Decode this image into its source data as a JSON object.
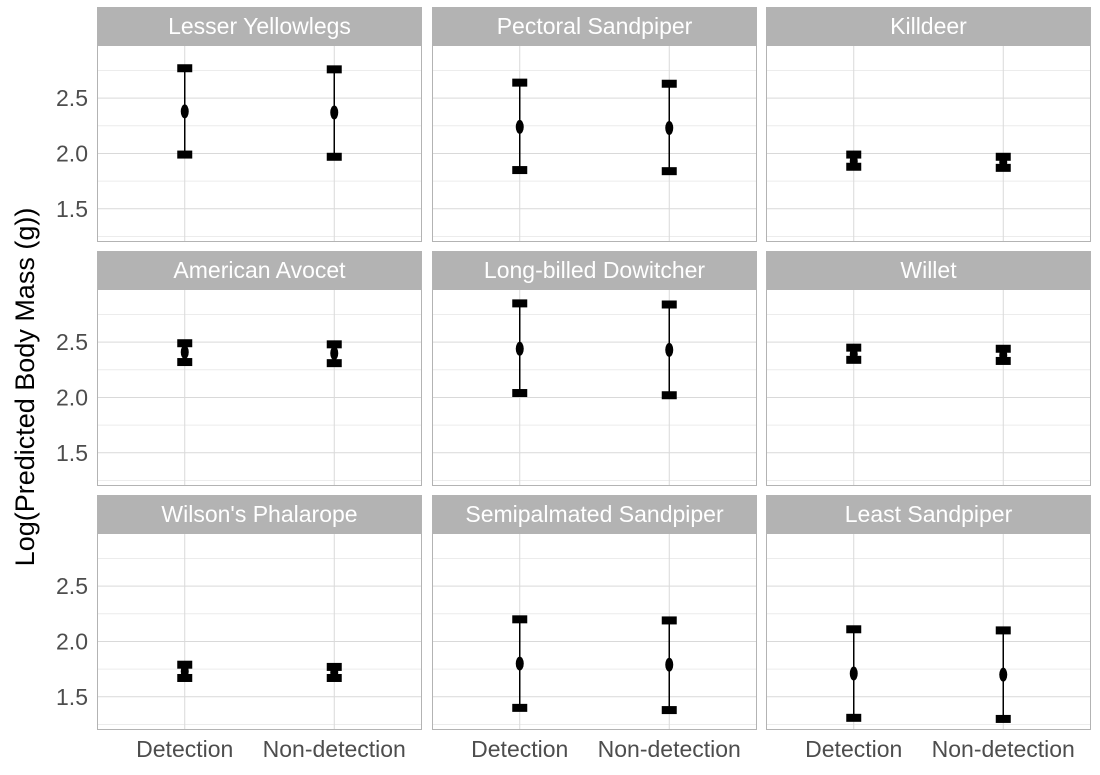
{
  "chart_data": {
    "type": "errorbar",
    "ylabel": "Log(Predicted Body Mass (g))",
    "xlabel": "",
    "categories": [
      "Detection",
      "Non-detection"
    ],
    "yticks": [
      1.5,
      2.0,
      2.5
    ],
    "ytick_labels": [
      "1.5",
      "2.0",
      "2.5"
    ],
    "ylim": [
      1.2,
      2.98
    ],
    "grid": true,
    "colors": {
      "strip_bg": "#b3b3b3",
      "strip_text": "#ffffff",
      "panel_border": "#b3b3b3",
      "grid_major": "#d9d9d9",
      "grid_minor": "#ececec",
      "mark": "#000000",
      "axis_text": "#4d4d4d"
    },
    "panels": [
      {
        "title": "Lesser Yellowlegs",
        "points": [
          {
            "x": "Detection",
            "mean": 2.38,
            "lower": 1.99,
            "upper": 2.77
          },
          {
            "x": "Non-detection",
            "mean": 2.37,
            "lower": 1.97,
            "upper": 2.76
          }
        ]
      },
      {
        "title": "Pectoral Sandpiper",
        "points": [
          {
            "x": "Detection",
            "mean": 2.24,
            "lower": 1.85,
            "upper": 2.64
          },
          {
            "x": "Non-detection",
            "mean": 2.23,
            "lower": 1.84,
            "upper": 2.63
          }
        ]
      },
      {
        "title": "Killdeer",
        "points": [
          {
            "x": "Detection",
            "mean": 1.93,
            "lower": 1.88,
            "upper": 1.99
          },
          {
            "x": "Non-detection",
            "mean": 1.92,
            "lower": 1.87,
            "upper": 1.97
          }
        ]
      },
      {
        "title": "American Avocet",
        "points": [
          {
            "x": "Detection",
            "mean": 2.41,
            "lower": 2.32,
            "upper": 2.49
          },
          {
            "x": "Non-detection",
            "mean": 2.4,
            "lower": 2.31,
            "upper": 2.48
          }
        ]
      },
      {
        "title": "Long-billed Dowitcher",
        "points": [
          {
            "x": "Detection",
            "mean": 2.44,
            "lower": 2.04,
            "upper": 2.85
          },
          {
            "x": "Non-detection",
            "mean": 2.43,
            "lower": 2.02,
            "upper": 2.84
          }
        ]
      },
      {
        "title": "Willet",
        "points": [
          {
            "x": "Detection",
            "mean": 2.39,
            "lower": 2.34,
            "upper": 2.45
          },
          {
            "x": "Non-detection",
            "mean": 2.38,
            "lower": 2.33,
            "upper": 2.44
          }
        ]
      },
      {
        "title": "Wilson's Phalarope",
        "points": [
          {
            "x": "Detection",
            "mean": 1.73,
            "lower": 1.67,
            "upper": 1.79
          },
          {
            "x": "Non-detection",
            "mean": 1.72,
            "lower": 1.67,
            "upper": 1.77
          }
        ]
      },
      {
        "title": "Semipalmated Sandpiper",
        "points": [
          {
            "x": "Detection",
            "mean": 1.8,
            "lower": 1.4,
            "upper": 2.2
          },
          {
            "x": "Non-detection",
            "mean": 1.79,
            "lower": 1.38,
            "upper": 2.19
          }
        ]
      },
      {
        "title": "Least Sandpiper",
        "points": [
          {
            "x": "Detection",
            "mean": 1.71,
            "lower": 1.31,
            "upper": 2.11
          },
          {
            "x": "Non-detection",
            "mean": 1.7,
            "lower": 1.3,
            "upper": 2.1
          }
        ]
      }
    ]
  }
}
